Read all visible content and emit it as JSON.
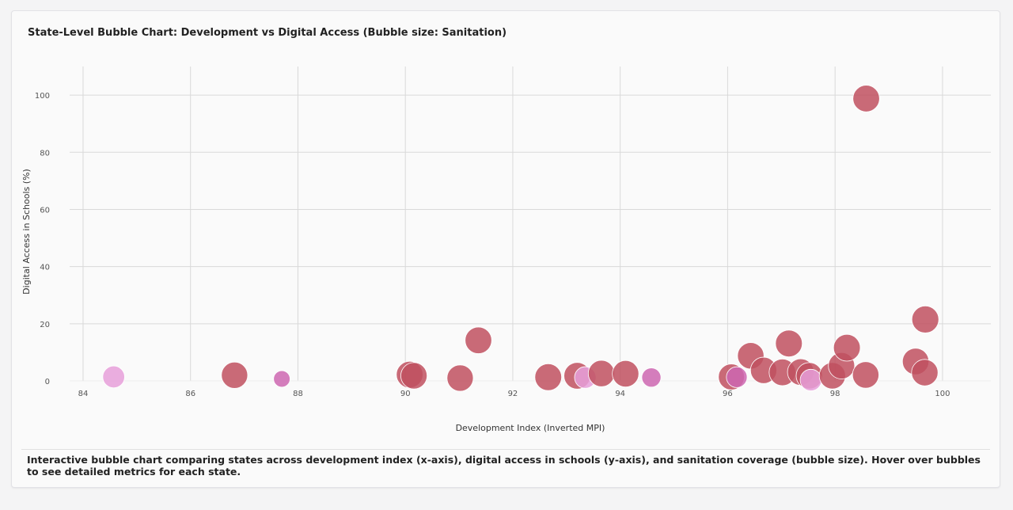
{
  "chart_data": {
    "type": "scatter",
    "title": "State-Level Bubble Chart: Development vs Digital Access (Bubble size: Sanitation)",
    "xlabel": "Development Index (Inverted MPI)",
    "ylabel": "Digital Access in Schools (%)",
    "xlim": [
      83.75,
      100.9
    ],
    "ylim": [
      0,
      110
    ],
    "xticks": [
      84,
      86,
      88,
      90,
      92,
      94,
      96,
      98,
      100
    ],
    "yticks": [
      0,
      20,
      40,
      60,
      80,
      100
    ],
    "colors": {
      "high": "#c0505f",
      "mid": "#cc66b0",
      "low": "#e69fd9"
    },
    "points": [
      {
        "x": 84.57,
        "y": 1.4,
        "size": 62,
        "tier": "low"
      },
      {
        "x": 86.82,
        "y": 2.0,
        "size": 90,
        "tier": "high"
      },
      {
        "x": 87.7,
        "y": 0.7,
        "size": 35,
        "tier": "mid"
      },
      {
        "x": 90.08,
        "y": 2.2,
        "size": 92,
        "tier": "high"
      },
      {
        "x": 90.16,
        "y": 1.8,
        "size": 90,
        "tier": "high"
      },
      {
        "x": 91.02,
        "y": 1.0,
        "size": 90,
        "tier": "high"
      },
      {
        "x": 91.36,
        "y": 14.2,
        "size": 92,
        "tier": "high"
      },
      {
        "x": 92.66,
        "y": 1.3,
        "size": 93,
        "tier": "high"
      },
      {
        "x": 93.2,
        "y": 1.8,
        "size": 92,
        "tier": "high"
      },
      {
        "x": 93.35,
        "y": 1.2,
        "size": 60,
        "tier": "low"
      },
      {
        "x": 93.65,
        "y": 2.6,
        "size": 90,
        "tier": "high"
      },
      {
        "x": 94.1,
        "y": 2.5,
        "size": 91,
        "tier": "high"
      },
      {
        "x": 94.58,
        "y": 1.2,
        "size": 48,
        "tier": "mid"
      },
      {
        "x": 96.07,
        "y": 1.4,
        "size": 88,
        "tier": "high"
      },
      {
        "x": 96.17,
        "y": 1.3,
        "size": 56,
        "tier": "mid"
      },
      {
        "x": 96.43,
        "y": 8.8,
        "size": 91,
        "tier": "high"
      },
      {
        "x": 96.67,
        "y": 3.7,
        "size": 90,
        "tier": "high"
      },
      {
        "x": 97.02,
        "y": 3.0,
        "size": 92,
        "tier": "high"
      },
      {
        "x": 97.14,
        "y": 13.1,
        "size": 93,
        "tier": "high"
      },
      {
        "x": 97.36,
        "y": 3.1,
        "size": 91,
        "tier": "high"
      },
      {
        "x": 97.52,
        "y": 1.8,
        "size": 90,
        "tier": "high"
      },
      {
        "x": 97.55,
        "y": 0.3,
        "size": 60,
        "tier": "low"
      },
      {
        "x": 97.95,
        "y": 1.8,
        "size": 90,
        "tier": "high"
      },
      {
        "x": 98.12,
        "y": 5.3,
        "size": 90,
        "tier": "high"
      },
      {
        "x": 98.22,
        "y": 11.6,
        "size": 93,
        "tier": "high"
      },
      {
        "x": 98.57,
        "y": 2.1,
        "size": 91,
        "tier": "high"
      },
      {
        "x": 98.58,
        "y": 98.8,
        "size": 92,
        "tier": "high"
      },
      {
        "x": 99.5,
        "y": 6.8,
        "size": 91,
        "tier": "high"
      },
      {
        "x": 99.67,
        "y": 2.9,
        "size": 91,
        "tier": "high"
      },
      {
        "x": 99.68,
        "y": 21.5,
        "size": 94,
        "tier": "high"
      }
    ]
  },
  "caption": "Interactive bubble chart comparing states across development index (x-axis), digital access in schools (y-axis), and sanitation coverage (bubble size). Hover over bubbles to see detailed metrics for each state."
}
